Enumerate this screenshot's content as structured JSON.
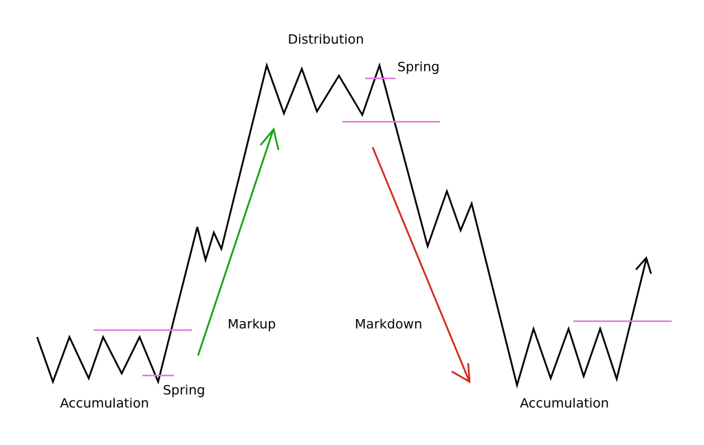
{
  "labels": {
    "distribution": "Distribution",
    "spring_top": "Spring",
    "markup": "Markup",
    "markdown": "Markdown",
    "accumulation_left": "Accumulation",
    "spring_bottom": "Spring",
    "accumulation_right": "Accumulation"
  }
}
